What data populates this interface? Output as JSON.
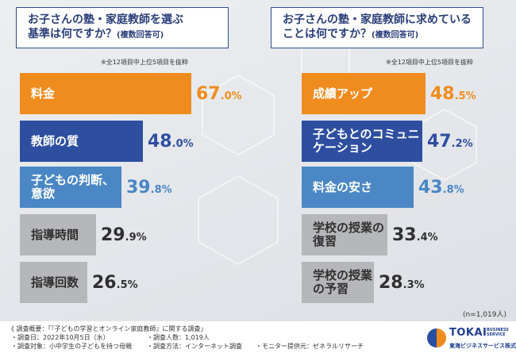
{
  "colors": {
    "orange": "#f08c1e",
    "blue": "#2e4fa0",
    "steel": "#4a87c4",
    "gray": "#b6b7ba",
    "gray_text": "#303030",
    "title": "#2a3f78"
  },
  "chart_data": [
    {
      "type": "bar",
      "orientation": "horizontal",
      "title_line1": "お子さんの塾・家庭教師を選ぶ",
      "title_line2": "基準は何ですか？",
      "title_sub": "(複数回答可)",
      "note": "※全12項目中上位5項目を抜粋",
      "unit": "%",
      "categories": [
        "料金",
        "教師の質",
        "子どもの判断、意欲",
        "指導時間",
        "指導回数"
      ],
      "values": [
        67.0,
        48.0,
        39.8,
        29.9,
        26.5
      ],
      "labels": [
        {
          "int": "67",
          "dec": ".0%"
        },
        {
          "int": "48",
          "dec": ".0%"
        },
        {
          "int": "39",
          "dec": ".8%"
        },
        {
          "int": "29",
          "dec": ".9%"
        },
        {
          "int": "26",
          "dec": ".5%"
        }
      ],
      "bar_colors": [
        "orange",
        "blue",
        "steel",
        "gray",
        "gray"
      ],
      "xlim": [
        0,
        100
      ]
    },
    {
      "type": "bar",
      "orientation": "horizontal",
      "title_line1": "お子さんの塾・家庭教師に求めている",
      "title_line2": "ことは何ですか？",
      "title_sub": "(複数回答可)",
      "note": "※全12項目中上位5項目を抜粋",
      "unit": "%",
      "categories": [
        "成績アップ",
        "子どもとのコミュニケーション",
        "料金の安さ",
        "学校の授業の復習",
        "学校の授業の予習"
      ],
      "values": [
        48.5,
        47.2,
        43.8,
        33.4,
        28.3
      ],
      "labels": [
        {
          "int": "48",
          "dec": ".5%"
        },
        {
          "int": "47",
          "dec": ".2%"
        },
        {
          "int": "43",
          "dec": ".8%"
        },
        {
          "int": "33",
          "dec": ".4%"
        },
        {
          "int": "28",
          "dec": ".3%"
        }
      ],
      "bar_colors": [
        "orange",
        "blue",
        "steel",
        "gray",
        "gray"
      ],
      "xlim": [
        0,
        100
      ]
    }
  ],
  "sample_note": "(n=1,019人)",
  "footer": {
    "title": "《 調査概要：「『子どもの学習とオンライン家庭教師』に関する調査」",
    "items": [
      "・調査日：2022年10月5日（水）",
      "・調査対象：小中学生の子どもを持つ母親",
      "・調査人数：1,019人",
      "・調査方法：インターネット調査",
      "・モニター提供元：ゼネラルリサーチ"
    ]
  },
  "logo": {
    "name": "TOKAI",
    "sub": "BUSINESS\nSERVICE",
    "jp": "東海ビジネスサービス株式会社"
  }
}
